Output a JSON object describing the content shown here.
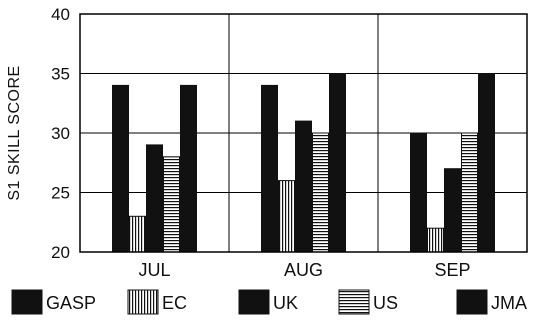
{
  "chart_data": {
    "type": "bar",
    "title": "",
    "xlabel": "",
    "ylabel": "S1 SKILL SCORE",
    "ylim": [
      20,
      40
    ],
    "yticks": [
      20,
      25,
      30,
      35,
      40
    ],
    "grid": true,
    "legend_position": "bottom",
    "categories": [
      "JUL",
      "AUG",
      "SEP"
    ],
    "series": [
      {
        "name": "GASP",
        "values": [
          34,
          34,
          30
        ],
        "pattern": "solid"
      },
      {
        "name": "EC",
        "values": [
          23,
          26,
          22
        ],
        "pattern": "vertical-stripes"
      },
      {
        "name": "UK",
        "values": [
          29,
          31,
          27
        ],
        "pattern": "solid"
      },
      {
        "name": "US",
        "values": [
          28,
          30,
          30
        ],
        "pattern": "horizontal-stripes"
      },
      {
        "name": "JMA",
        "values": [
          34,
          35,
          35
        ],
        "pattern": "solid"
      }
    ],
    "colors": {
      "bar": "#111111",
      "stripe_bg": "#ffffff",
      "grid": "#000000"
    }
  }
}
